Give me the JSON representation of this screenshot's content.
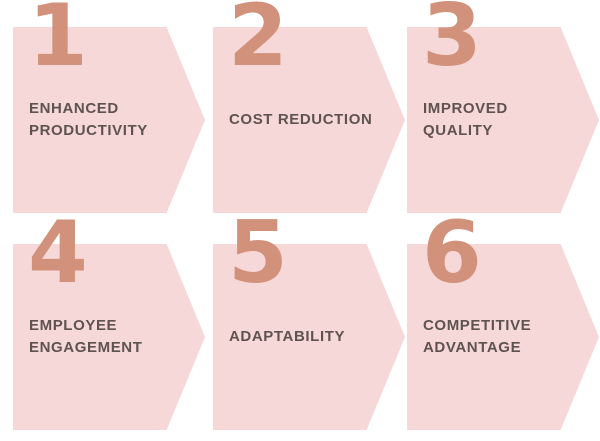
{
  "canvas": {
    "bg": "#ffffff"
  },
  "palette": {
    "canvas_bg": "#ffffff",
    "shape_fill": "#f7d8d8",
    "number_color": "#d2917a",
    "label_color": "#5e534f"
  },
  "diagram": {
    "type": "process-benefits-infographic",
    "steps": [
      {
        "number": "1",
        "label": "ENHANCED\nPRODUCTIVITY"
      },
      {
        "number": "2",
        "label": "COST REDUCTION"
      },
      {
        "number": "3",
        "label": "IMPROVED\nQUALITY"
      },
      {
        "number": "4",
        "label": "EMPLOYEE\nENGAGEMENT"
      },
      {
        "number": "5",
        "label": "ADAPTABILITY"
      },
      {
        "number": "6",
        "label": "COMPETITIVE\nADVANTAGE"
      }
    ]
  }
}
